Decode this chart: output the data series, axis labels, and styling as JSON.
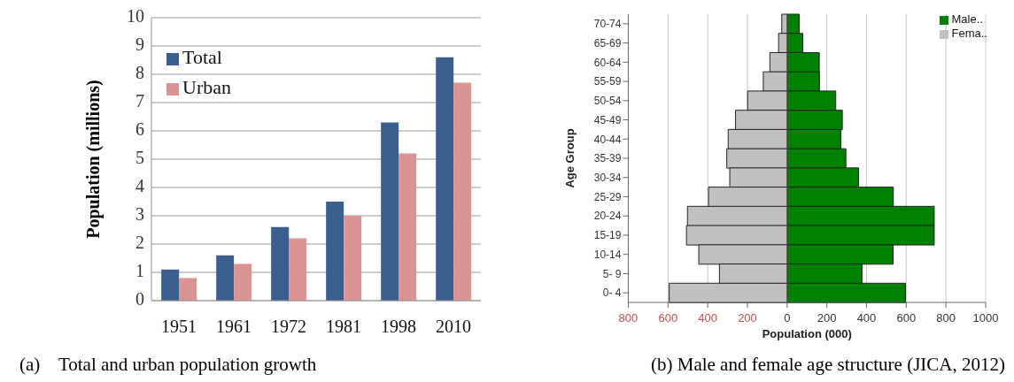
{
  "chart_data": [
    {
      "type": "bar",
      "ylabel": "Population (millions)",
      "categories": [
        "1951",
        "1961",
        "1972",
        "1981",
        "1998",
        "2010"
      ],
      "series": [
        {
          "name": "Total",
          "color": "#3a5f8f",
          "values": [
            1.1,
            1.6,
            2.6,
            3.5,
            6.3,
            8.6
          ]
        },
        {
          "name": "Urban",
          "color": "#d99594",
          "values": [
            0.8,
            1.3,
            2.2,
            3.0,
            5.2,
            7.7
          ]
        }
      ],
      "ylim": [
        0,
        10
      ],
      "yticks": [
        0,
        1,
        2,
        3,
        4,
        5,
        6,
        7,
        8,
        9,
        10
      ],
      "grid": "y",
      "legend": "top left",
      "annotations": [
        "(a)    Total and urban population growth"
      ]
    },
    {
      "type": "bar",
      "orientation": "horizontal",
      "stacked": true,
      "xlabel": "Population (000)",
      "ylabel": "Age Group",
      "categories": [
        "70-74",
        "65-69",
        "60-64",
        "55-59",
        "50-54",
        "45-49",
        "40-44",
        "35-39",
        "30-34",
        "25-29",
        "20-24",
        "15-19",
        "10-14",
        "5- 9",
        "0- 4"
      ],
      "series": [
        {
          "name": "Male..",
          "color": "#008000",
          "values": [
            61,
            79,
            162,
            163,
            245,
            278,
            271,
            296,
            360,
            535,
            741,
            741,
            534,
            377,
            596
          ]
        },
        {
          "name": "Fema..",
          "color": "#c0c0c0",
          "values": [
            -27,
            -43,
            -87,
            -120,
            -199,
            -260,
            -297,
            -304,
            -289,
            -396,
            -502,
            -507,
            -445,
            -341,
            -594
          ]
        }
      ],
      "xlim": [
        -800,
        1000
      ],
      "xticks": [
        {
          "value": -800,
          "label": "800"
        },
        {
          "value": -600,
          "label": "600"
        },
        {
          "value": -400,
          "label": "400"
        },
        {
          "value": -200,
          "label": "200"
        },
        0,
        200,
        400,
        600,
        800,
        1000
      ],
      "grid": "x",
      "legend": "top right",
      "annotations": [
        "(b) Male and female age structure (JICA, 2012)"
      ]
    }
  ]
}
